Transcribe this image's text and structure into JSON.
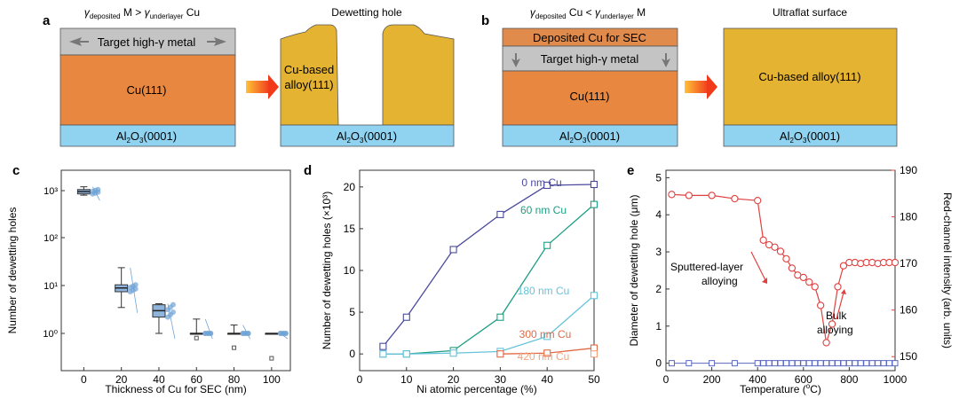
{
  "colors": {
    "cu": "#E8873F",
    "alloy": "#E5B332",
    "sapphire": "#8FD3F1",
    "metal": "#C4C4C4",
    "sec": "#E08A4B",
    "arrow": "#F04A1F",
    "navy": "#4B4A9C",
    "teal": "#1E9E83",
    "lightblue": "#67C3DA",
    "salmon": "#E06A45",
    "peach": "#F4A37A",
    "red": "#E04040",
    "blue": "#5A68C0",
    "boxblue": "#6FA3D6"
  },
  "panel_a": {
    "letter": "a",
    "cond_pre": "γ",
    "cond_sub1": "deposited",
    "cond_mid": " M > ",
    "cond_pre2": "γ",
    "cond_sub2": "underlayer",
    "cond_post": " Cu",
    "metal_label": "Target high-γ metal",
    "cu_label": "Cu(111)",
    "sub_main": "Al",
    "sub_s1": "2",
    "sub_o": "O",
    "sub_s2": "3",
    "sub_tail": "(0001)",
    "result_title": "Dewetting hole",
    "alloy_line1": "Cu-based",
    "alloy_line2": "alloy(111)"
  },
  "panel_b": {
    "letter": "b",
    "cond_pre": "γ",
    "cond_sub1": "deposited",
    "cond_mid": " Cu < ",
    "cond_pre2": "γ",
    "cond_sub2": "underlayer",
    "cond_post": " M",
    "sec_label": "Deposited Cu for SEC",
    "metal_label": "Target high-γ metal",
    "cu_label": "Cu(111)",
    "result_title": "Ultraflat surface",
    "alloy_label": "Cu-based alloy(111)"
  },
  "chart_data": [
    {
      "letter": "c",
      "type": "box",
      "xlabel": "Thickness of Cu for SEC (nm)",
      "ylabel": "Number of dewetting holes",
      "yscale": "log",
      "xticks": [
        "0",
        "20",
        "40",
        "60",
        "80",
        "100"
      ],
      "yticks": [
        "10⁰",
        "10¹",
        "10²",
        "10³"
      ],
      "categories": [
        0,
        20,
        40,
        60,
        80,
        100
      ],
      "medians": [
        950,
        9,
        3,
        1,
        1,
        1
      ],
      "q1": [
        850,
        7.5,
        2.2,
        1,
        1,
        1
      ],
      "q3": [
        1050,
        10.5,
        4,
        1,
        1,
        1
      ],
      "whisker_low": [
        800,
        3.5,
        1,
        1,
        1,
        1
      ],
      "whisker_high": [
        1200,
        24,
        4.2,
        2,
        1.5,
        1
      ],
      "outliers": [
        [],
        [],
        [],
        [
          0.8
        ],
        [
          0.5
        ],
        [
          0.3
        ]
      ]
    },
    {
      "letter": "d",
      "type": "line",
      "xlabel": "Ni atomic percentage (%)",
      "ylabel": "Number of dewetting holes (×10³)",
      "xlim": [
        0,
        50
      ],
      "ylim": [
        -2,
        22
      ],
      "xticks": [
        "0",
        "10",
        "20",
        "30",
        "40",
        "50"
      ],
      "yticks": [
        "0",
        "5",
        "10",
        "15",
        "20"
      ],
      "series": [
        {
          "name": "0 nm Cu",
          "x": [
            5,
            10,
            20,
            30,
            40,
            50
          ],
          "y": [
            0.9,
            4.4,
            12.5,
            16.7,
            20.2,
            20.3
          ]
        },
        {
          "name": "60 nm Cu",
          "x": [
            5,
            10,
            20,
            30,
            40,
            50
          ],
          "y": [
            0,
            0,
            0.4,
            4.4,
            13.0,
            17.9
          ]
        },
        {
          "name": "180 nm Cu",
          "x": [
            5,
            10,
            20,
            30,
            40,
            50
          ],
          "y": [
            0,
            0,
            0.1,
            0.3,
            2.1,
            7.0
          ]
        },
        {
          "name": "300 nm Cu",
          "x": [
            30,
            40,
            50
          ],
          "y": [
            0,
            0.1,
            0.7
          ]
        },
        {
          "name": "420 nm Cu",
          "x": [
            50
          ],
          "y": [
            0
          ]
        }
      ]
    },
    {
      "letter": "e",
      "type": "dual-axis line",
      "xlabel": "Temperature (°C)",
      "xlabel_pre": "Temperature (",
      "xlabel_sup": "o",
      "xlabel_post": "C)",
      "ylabel_left": "Diameter of dewetting hole (μm)",
      "ylabel_right": "Red-channel intensity (arb. units)",
      "xlim": [
        0,
        1000
      ],
      "ylim_left": [
        -0.2,
        5.2
      ],
      "ylim_right": [
        147,
        190
      ],
      "xticks": [
        "0",
        "200",
        "400",
        "600",
        "800",
        "1000"
      ],
      "yticks_left": [
        "0",
        "1",
        "2",
        "3",
        "4",
        "5"
      ],
      "yticks_right": [
        "150",
        "160",
        "170",
        "180",
        "190"
      ],
      "series_left": {
        "name": "Diameter",
        "x": [
          25,
          100,
          200,
          300,
          400,
          425,
          450,
          475,
          500,
          525,
          550,
          575,
          600,
          625,
          650,
          675,
          700,
          725,
          750,
          775,
          800,
          825,
          850,
          875,
          900,
          925,
          950,
          975,
          1000
        ],
        "y": [
          0,
          0,
          0,
          0,
          0,
          0,
          0,
          0,
          0,
          0,
          0,
          0,
          0,
          0,
          0,
          0,
          0,
          0,
          0,
          0,
          0,
          0,
          0,
          0,
          0,
          0,
          0,
          0,
          0
        ]
      },
      "series_right": {
        "name": "Red-channel intensity",
        "x": [
          25,
          100,
          200,
          300,
          400,
          425,
          450,
          475,
          500,
          525,
          550,
          575,
          600,
          625,
          650,
          675,
          700,
          725,
          750,
          775,
          800,
          825,
          850,
          875,
          900,
          925,
          950,
          975,
          1000
        ],
        "y": [
          184.8,
          184.6,
          184.6,
          183.9,
          183.5,
          175,
          174,
          173.5,
          172.6,
          171,
          169,
          167.5,
          167,
          166,
          165,
          161,
          153,
          157,
          165,
          169.5,
          170.2,
          170.2,
          170,
          170.2,
          170.2,
          170,
          170.2,
          170.2,
          170.2
        ]
      },
      "annotations": [
        {
          "lines": [
            "Sputtered-layer",
            "alloying"
          ]
        },
        {
          "lines": [
            "Bulk",
            "alloying"
          ]
        }
      ]
    }
  ]
}
